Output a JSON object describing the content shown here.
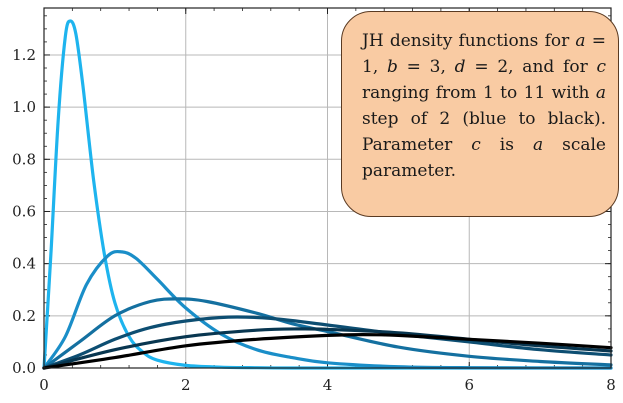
{
  "chart_data": {
    "type": "line",
    "title": "",
    "xlabel": "",
    "ylabel": "",
    "xlim": [
      0,
      8
    ],
    "ylim": [
      0,
      1.38
    ],
    "grid": true,
    "x_ticks": [
      "0",
      "2",
      "4",
      "6",
      "8"
    ],
    "y_ticks": [
      "0.0",
      "0.2",
      "0.4",
      "0.6",
      "0.8",
      "1.0",
      "1.2"
    ],
    "annotation": "JH density functions for a = 1, b = 3, d = 2, and for c ranging from 1 to 11 with a step of 2 (blue to black). Parameter c is a scale parameter.",
    "series": [
      {
        "color": "#1eb4ee",
        "x": [
          0,
          0.1,
          0.2,
          0.3,
          0.37,
          0.45,
          0.55,
          0.7,
          0.85,
          1.0,
          1.2,
          1.4,
          1.6,
          2.0,
          2.5,
          3.0,
          3.5,
          4.0,
          6.0,
          8.0
        ],
        "y": [
          0.0,
          0.45,
          0.95,
          1.27,
          1.33,
          1.28,
          1.08,
          0.72,
          0.44,
          0.25,
          0.12,
          0.06,
          0.03,
          0.01,
          0.003,
          0.001,
          0.0,
          0.0,
          0.0,
          0.0
        ]
      },
      {
        "color": "#1a8ec8",
        "x": [
          0,
          0.3,
          0.6,
          0.9,
          1.1,
          1.3,
          1.6,
          2.0,
          2.5,
          3.0,
          3.5,
          4.0,
          5.0,
          6.0,
          8.0
        ],
        "y": [
          0.0,
          0.12,
          0.32,
          0.43,
          0.445,
          0.42,
          0.34,
          0.23,
          0.13,
          0.07,
          0.04,
          0.02,
          0.005,
          0.001,
          0.0
        ]
      },
      {
        "color": "#1470a0",
        "x": [
          0,
          0.5,
          1.0,
          1.5,
          1.9,
          2.3,
          3.0,
          3.5,
          4.0,
          5.0,
          6.0,
          7.0,
          8.0
        ],
        "y": [
          0.0,
          0.1,
          0.2,
          0.255,
          0.265,
          0.255,
          0.21,
          0.17,
          0.14,
          0.08,
          0.045,
          0.025,
          0.012
        ]
      },
      {
        "color": "#0d4e72",
        "x": [
          0,
          0.5,
          1.0,
          1.5,
          2.0,
          2.6,
          3.2,
          4.0,
          5.0,
          6.0,
          7.0,
          8.0
        ],
        "y": [
          0.0,
          0.05,
          0.11,
          0.155,
          0.18,
          0.195,
          0.19,
          0.165,
          0.13,
          0.1,
          0.07,
          0.05
        ]
      },
      {
        "color": "#083650",
        "x": [
          0,
          1.0,
          2.0,
          3.0,
          3.6,
          4.0,
          5.0,
          6.0,
          7.0,
          8.0
        ],
        "y": [
          0.0,
          0.07,
          0.12,
          0.145,
          0.15,
          0.148,
          0.135,
          0.11,
          0.085,
          0.065
        ]
      },
      {
        "color": "#000000",
        "x": [
          0,
          1.0,
          2.0,
          3.0,
          4.0,
          4.5,
          5.0,
          6.0,
          7.0,
          8.0
        ],
        "y": [
          0.0,
          0.04,
          0.085,
          0.11,
          0.125,
          0.128,
          0.125,
          0.11,
          0.095,
          0.078
        ]
      }
    ]
  }
}
